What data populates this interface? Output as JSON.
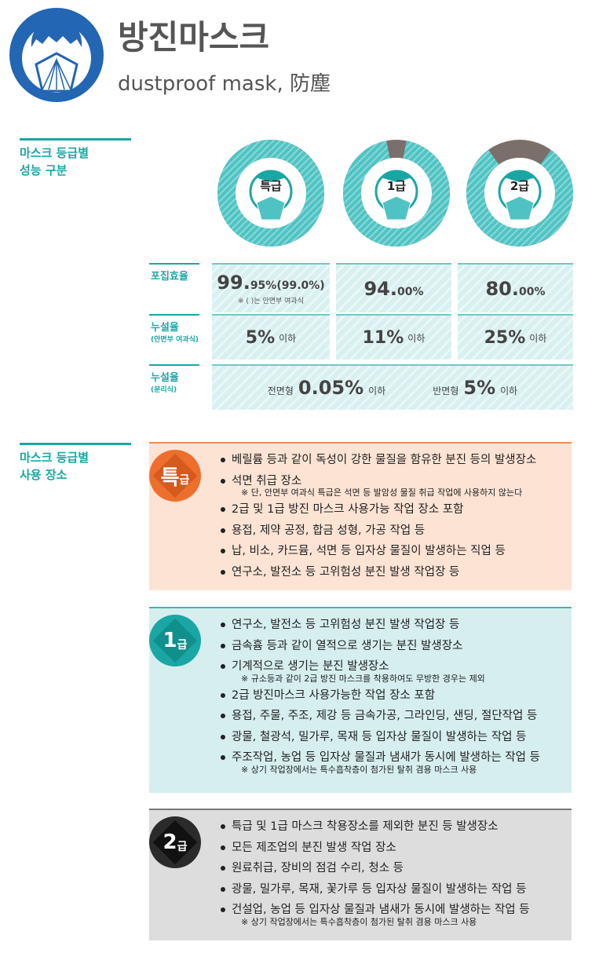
{
  "header": {
    "title": "방진마스크",
    "subtitle": "dustproof mask,  防塵"
  },
  "performance": {
    "heading": [
      "마스크 등급별",
      "성능 구분"
    ],
    "row_labels": [
      {
        "label": "포집효율"
      },
      {
        "label": "누설율",
        "sub": "(안면부 여과식)"
      },
      {
        "label": "누설율",
        "sub": "(분리식)"
      }
    ],
    "efficiency_note": "※ (      )는 안면부 여과식",
    "grades": [
      {
        "name": "특급",
        "efficiency": 99.95,
        "efficiency_parts": [
          "99.",
          "95%(99.0%)"
        ],
        "leakage": "5%",
        "leakage_suffix": "이하"
      },
      {
        "name": "1급",
        "efficiency": 94,
        "efficiency_parts": [
          "94.",
          "00%"
        ],
        "leakage": "11%",
        "leakage_suffix": "이하"
      },
      {
        "name": "2급",
        "efficiency": 80,
        "efficiency_parts": [
          "80.",
          "00%"
        ],
        "leakage": "25%",
        "leakage_suffix": "이하"
      }
    ],
    "separable": [
      {
        "type": "전면형",
        "value": "0.05%",
        "suffix": "이하"
      },
      {
        "type": "반면형",
        "value": "5%",
        "suffix": "이하"
      }
    ]
  },
  "usage": {
    "heading": [
      "마스크 등급별",
      "사용 장소"
    ],
    "grades": [
      {
        "badge": [
          "특",
          "급"
        ],
        "items": [
          {
            "text": "베릴륨 등과 같이 독성이 강한 물질을 함유한 분진 등의 발생장소"
          },
          {
            "text": "석면 취급 장소",
            "note": "※ 단, 안면부 여과식 특급은 석면 등 발암성 물질 취급 작업에 사용하지 않는다"
          },
          {
            "text": "2급 및 1급 방진 마스크 사용가능 작업 장소 포함"
          },
          {
            "text": "용접, 제약 공정, 합금 성형, 가공 작업 등"
          },
          {
            "text": "납, 비소, 카드뮴, 석면 등 입자상 물질이 발생하는 직업 등"
          },
          {
            "text": "연구소, 발전소 등 고위험성 분진 발생 작업장 등"
          }
        ]
      },
      {
        "badge": [
          "1",
          "급"
        ],
        "items": [
          {
            "text": "연구소, 발전소 등 고위험성 분진 발생 작업장 등"
          },
          {
            "text": "금속흄 등과 같이 열적으로 생기는 분진 발생장소"
          },
          {
            "text": "기계적으로 생기는 분진 발생장소",
            "note": "※ 규소등과 같이 2급 방진 마스크를 착용하여도 무방한 경우는 제외"
          },
          {
            "text": "2급 방진마스크 사용가능한 작업 장소 포함"
          },
          {
            "text": "용접, 주물, 주조, 제강 등 금속가공, 그라인딩, 샌딩, 절단작업 등"
          },
          {
            "text": "광물, 철광석, 밀가루, 목재 등 입자상 물질이 발생하는 작업 등"
          },
          {
            "text": "주조작업, 농업 등 입자상 물질과 냄새가 동시에 발생하는 작업 등",
            "note": "※ 상기 작업장에서는 특수흡착층이 첨가된 탈취 겸용 마스크 사용"
          }
        ]
      },
      {
        "badge": [
          "2",
          "급"
        ],
        "items": [
          {
            "text": "특급 및 1급 마스크 착용장소를 제외한 분진 등 발생장소"
          },
          {
            "text": "모든 제조업의 분진 발생 작업 장소"
          },
          {
            "text": "원료취급, 장비의 점검 수리, 청소 등"
          },
          {
            "text": "광물, 밀가루, 목재, 꽃가루 등 입자상 물질이 발생하는 작업 등"
          },
          {
            "text": "건설업, 농업 등 입자상 물질과 냄새가 동시에 발생하는 작업 등",
            "note": "※ 상기 작업장에서는 특수흡착층이 첨가된 탈취 겸용 마스크 사용"
          }
        ]
      }
    ]
  }
}
